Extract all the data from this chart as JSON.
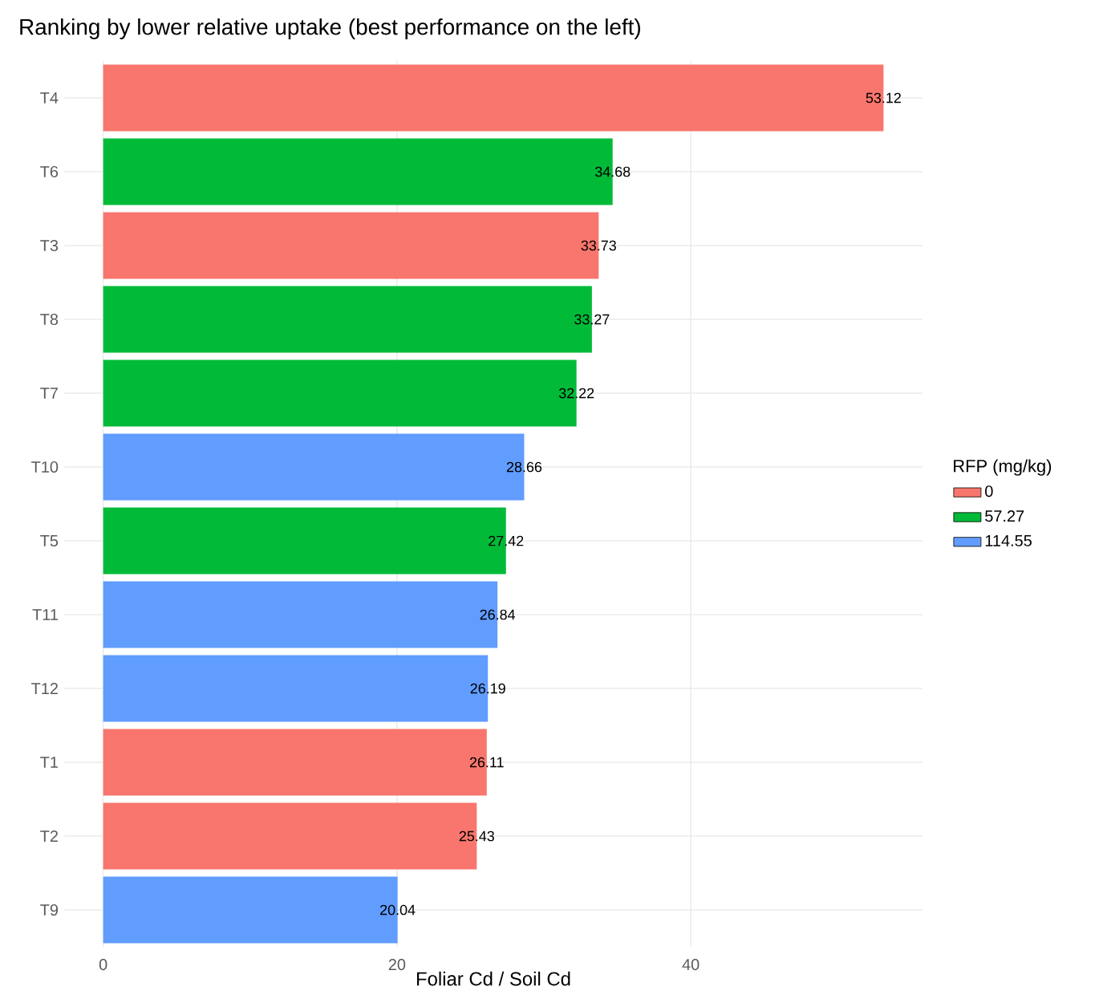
{
  "chart_data": {
    "type": "bar",
    "orientation": "horizontal",
    "title": "Ranking by lower relative uptake (best performance on the left)",
    "xlabel": "Foliar Cd / Soil Cd",
    "legend_title": "RFP (mg/kg)",
    "categories": [
      "T4",
      "T6",
      "T3",
      "T8",
      "T7",
      "T10",
      "T5",
      "T11",
      "T12",
      "T1",
      "T2",
      "T9"
    ],
    "series": [
      {
        "name": "0",
        "color": "#f8766d",
        "values": [
          53.12,
          null,
          33.73,
          null,
          null,
          null,
          null,
          null,
          null,
          26.11,
          25.43,
          null
        ]
      },
      {
        "name": "57.27",
        "color": "#00ba38",
        "values": [
          null,
          34.68,
          null,
          33.27,
          32.22,
          null,
          27.42,
          null,
          null,
          null,
          null,
          null
        ]
      },
      {
        "name": "114.55",
        "color": "#619cff",
        "values": [
          null,
          null,
          null,
          null,
          null,
          28.66,
          null,
          26.84,
          26.19,
          null,
          null,
          20.04
        ]
      }
    ],
    "xlim": [
      -2.656,
      55.776
    ],
    "xticks": [
      0,
      20,
      40
    ],
    "grid": true,
    "legend": "right",
    "data_labels": true
  }
}
